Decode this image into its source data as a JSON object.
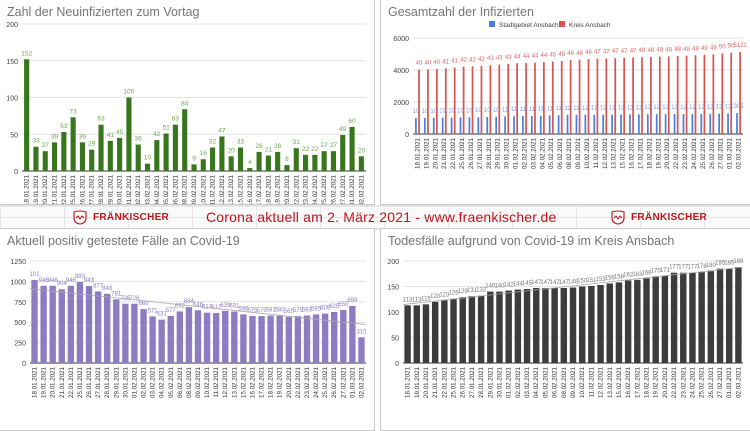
{
  "banner": {
    "title": "Corona aktuell am 2. März 2021 - www.fraenkischer.de",
    "logo_text": "FRÄNKISCHER",
    "brand_color": "#c0141e"
  },
  "chart_data": [
    {
      "id": "neuinfizierte",
      "type": "bar",
      "title": "Zahl der Neuinfizierten zum Vortag",
      "xlabel": "",
      "ylabel": "",
      "ylim": [
        0,
        200
      ],
      "yticks": [
        0,
        50,
        100,
        150,
        200
      ],
      "grid": true,
      "categories": [
        "18.01.2021",
        "19.01.2021",
        "20.01.2021",
        "21.01.2021",
        "22.01.2021",
        "25.01.2021",
        "26.01.2021",
        "27.01.2021",
        "28.01.2021",
        "29.01.2021",
        "30.01.2021",
        "01.02.2021",
        "02.02.2021",
        "03.02.2021",
        "04.02.2021",
        "05.02.2021",
        "06.02.2021",
        "08.02.2021",
        "09.02.2021",
        "10.02.2021",
        "11.02.2021",
        "12.02.2021",
        "13.02.2021",
        "15.02.2021",
        "16.02.2021",
        "17.02.2021",
        "18.02.2021",
        "19.02.2021",
        "20.02.2021",
        "22.02.2021",
        "23.02.2021",
        "24.02.2021",
        "25.02.2021",
        "26.02.2021",
        "27.02.2021",
        "01.03.2021",
        "02.03.2021"
      ],
      "series": [
        {
          "name": "Neuinfizierte",
          "color": "#38761d",
          "label_color": "#6aa84f",
          "values": [
            152,
            33,
            27,
            39,
            53,
            73,
            39,
            29,
            63,
            41,
            45,
            100,
            36,
            10,
            42,
            51,
            63,
            84,
            9,
            16,
            32,
            47,
            20,
            32,
            4,
            26,
            21,
            26,
            8,
            31,
            22,
            22,
            27,
            27,
            49,
            60,
            20
          ]
        }
      ]
    },
    {
      "id": "gesamtzahl",
      "type": "bar",
      "title": "Gesamtzahl der Infizierten",
      "xlabel": "",
      "ylabel": "",
      "ylim": [
        0,
        6000
      ],
      "yticks": [
        0,
        2000,
        4000,
        6000
      ],
      "grid": true,
      "legend": "top-center",
      "categories": [
        "18.01.2021",
        "19.01.2021",
        "20.01.2021",
        "21.01.2021",
        "22.01.2021",
        "25.01.2021",
        "26.01.2021",
        "27.01.2021",
        "28.01.2021",
        "29.01.2021",
        "30.01.2021",
        "01.02.2021",
        "02.02.2021",
        "03.02.2021",
        "04.02.2021",
        "05.02.2021",
        "06.02.2021",
        "08.02.2021",
        "09.02.2021",
        "10.02.2021",
        "11.02.2021",
        "12.02.2021",
        "13.02.2021",
        "15.02.2021",
        "16.02.2021",
        "17.02.2021",
        "18.02.2021",
        "19.02.2021",
        "20.02.2021",
        "22.02.2021",
        "23.02.2021",
        "24.02.2021",
        "25.02.2021",
        "26.02.2021",
        "27.02.2021",
        "01.03.2021",
        "02.03.2021"
      ],
      "series": [
        {
          "name": "Stadtgebiet Ansbach",
          "color": "#4a7fe0",
          "label_color": "#6d9eeb",
          "values": [
            1005,
            1008,
            1012,
            1016,
            1020,
            1035,
            1040,
            1048,
            1060,
            1075,
            1100,
            1110,
            1120,
            1130,
            1150,
            1165,
            1180,
            1195,
            1200,
            1203,
            1205,
            1210,
            1215,
            1222,
            1225,
            1230,
            1235,
            1240,
            1242,
            1245,
            1248,
            1252,
            1258,
            1262,
            1275,
            1290,
            1305
          ]
        },
        {
          "name": "Kreis Ansbach",
          "color": "#d9534f",
          "label_color": "#e06666",
          "values": [
            4020,
            4040,
            4055,
            4100,
            4150,
            4210,
            4230,
            4260,
            4300,
            4340,
            4380,
            4420,
            4440,
            4460,
            4490,
            4530,
            4560,
            4620,
            4640,
            4680,
            4710,
            4720,
            4740,
            4760,
            4780,
            4800,
            4820,
            4830,
            4850,
            4870,
            4890,
            4920,
            4950,
            4980,
            5030,
            5080,
            5121
          ]
        }
      ]
    },
    {
      "id": "aktuell-positiv",
      "type": "bar",
      "title": "Aktuell positiv getestete Fälle an Covid-19",
      "xlabel": "",
      "ylabel": "",
      "ylim": [
        0,
        1250
      ],
      "yticks": [
        0,
        250,
        500,
        750,
        1000,
        1250
      ],
      "grid": true,
      "trendline": true,
      "categories": [
        "18.01.2021",
        "19.01.2021",
        "20.01.2021",
        "21.01.2021",
        "22.01.2021",
        "25.01.2021",
        "26.01.2021",
        "27.01.2021",
        "28.01.2021",
        "29.01.2021",
        "30.01.2021",
        "01.02.2021",
        "02.02.2021",
        "03.02.2021",
        "04.02.2021",
        "05.02.2021",
        "06.02.2021",
        "08.02.2021",
        "09.02.2021",
        "10.02.2021",
        "11.02.2021",
        "12.02.2021",
        "13.02.2021",
        "15.02.2021",
        "16.02.2021",
        "17.02.2021",
        "18.02.2021",
        "19.02.2021",
        "20.02.2021",
        "22.02.2021",
        "23.02.2021",
        "24.02.2021",
        "25.02.2021",
        "26.02.2021",
        "27.02.2021",
        "01.03.2021",
        "02.03.2021"
      ],
      "series": [
        {
          "name": "Aktuell positiv",
          "color": "#8e7cc3",
          "label_color": "#8e7cc3",
          "values": [
            1018,
            946,
            946,
            904,
            946,
            993,
            943,
            877,
            848,
            781,
            726,
            726,
            660,
            571,
            531,
            577,
            632,
            684,
            646,
            617,
            612,
            639,
            631,
            596,
            575,
            575,
            581,
            580,
            565,
            575,
            583,
            595,
            605,
            625,
            650,
            699,
            315
          ]
        }
      ]
    },
    {
      "id": "todesfaelle",
      "type": "bar",
      "title": "Todesfälle aufgrund von Covid-19 im Kreis Ansbach",
      "xlabel": "",
      "ylabel": "",
      "ylim": [
        0,
        200
      ],
      "yticks": [
        0,
        50,
        100,
        150,
        200
      ],
      "grid": true,
      "trendline": true,
      "categories": [
        "18.01.2021",
        "19.01.2021",
        "20.01.2021",
        "21.01.2021",
        "22.01.2021",
        "25.01.2021",
        "26.01.2021",
        "27.01.2021",
        "28.01.2021",
        "29.01.2021",
        "30.01.2021",
        "01.02.2021",
        "02.02.2021",
        "03.02.2021",
        "04.02.2021",
        "05.02.2021",
        "06.02.2021",
        "08.02.2021",
        "09.02.2021",
        "10.02.2021",
        "11.02.2021",
        "12.02.2021",
        "13.02.2021",
        "15.02.2021",
        "16.02.2021",
        "17.02.2021",
        "18.02.2021",
        "19.02.2021",
        "20.02.2021",
        "22.02.2021",
        "23.02.2021",
        "24.02.2021",
        "25.02.2021",
        "26.02.2021",
        "27.02.2021",
        "01.03.2021",
        "02.03.2021"
      ],
      "series": [
        {
          "name": "Todesfälle",
          "color": "#3c3c3c",
          "label_color": "#777777",
          "values": [
            113,
            113,
            115,
            120,
            123,
            126,
            129,
            131,
            132,
            140,
            140,
            142,
            144,
            145,
            147,
            147,
            147,
            147,
            148,
            150,
            151,
            153,
            156,
            158,
            162,
            163,
            166,
            170,
            171,
            177,
            177,
            177,
            178,
            180,
            185,
            185,
            188
          ]
        }
      ]
    }
  ]
}
